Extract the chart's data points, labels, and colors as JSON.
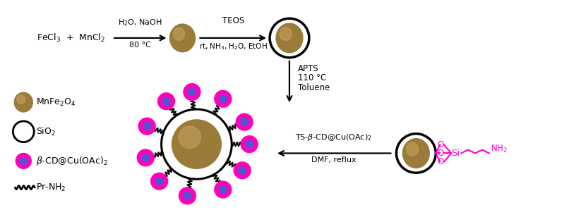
{
  "figsize": [
    8.06,
    3.15
  ],
  "dpi": 100,
  "bg_color": "#ffffff",
  "brown_color": "#9b7b3a",
  "brown_highlight": "#d4aa6a",
  "magenta_color": "#ff00bb",
  "blue_color": "#5555cc",
  "text_color": "#000000",
  "magenta_text": "#ff00cc",
  "legend_mnfe": "MnFe$_2$O$_4$",
  "legend_sio2": "SiO$_2$",
  "legend_bcd": "$\\beta$-CD@Cu(OAc)$_2$",
  "legend_prnh2": "Pr-NH$_2$"
}
